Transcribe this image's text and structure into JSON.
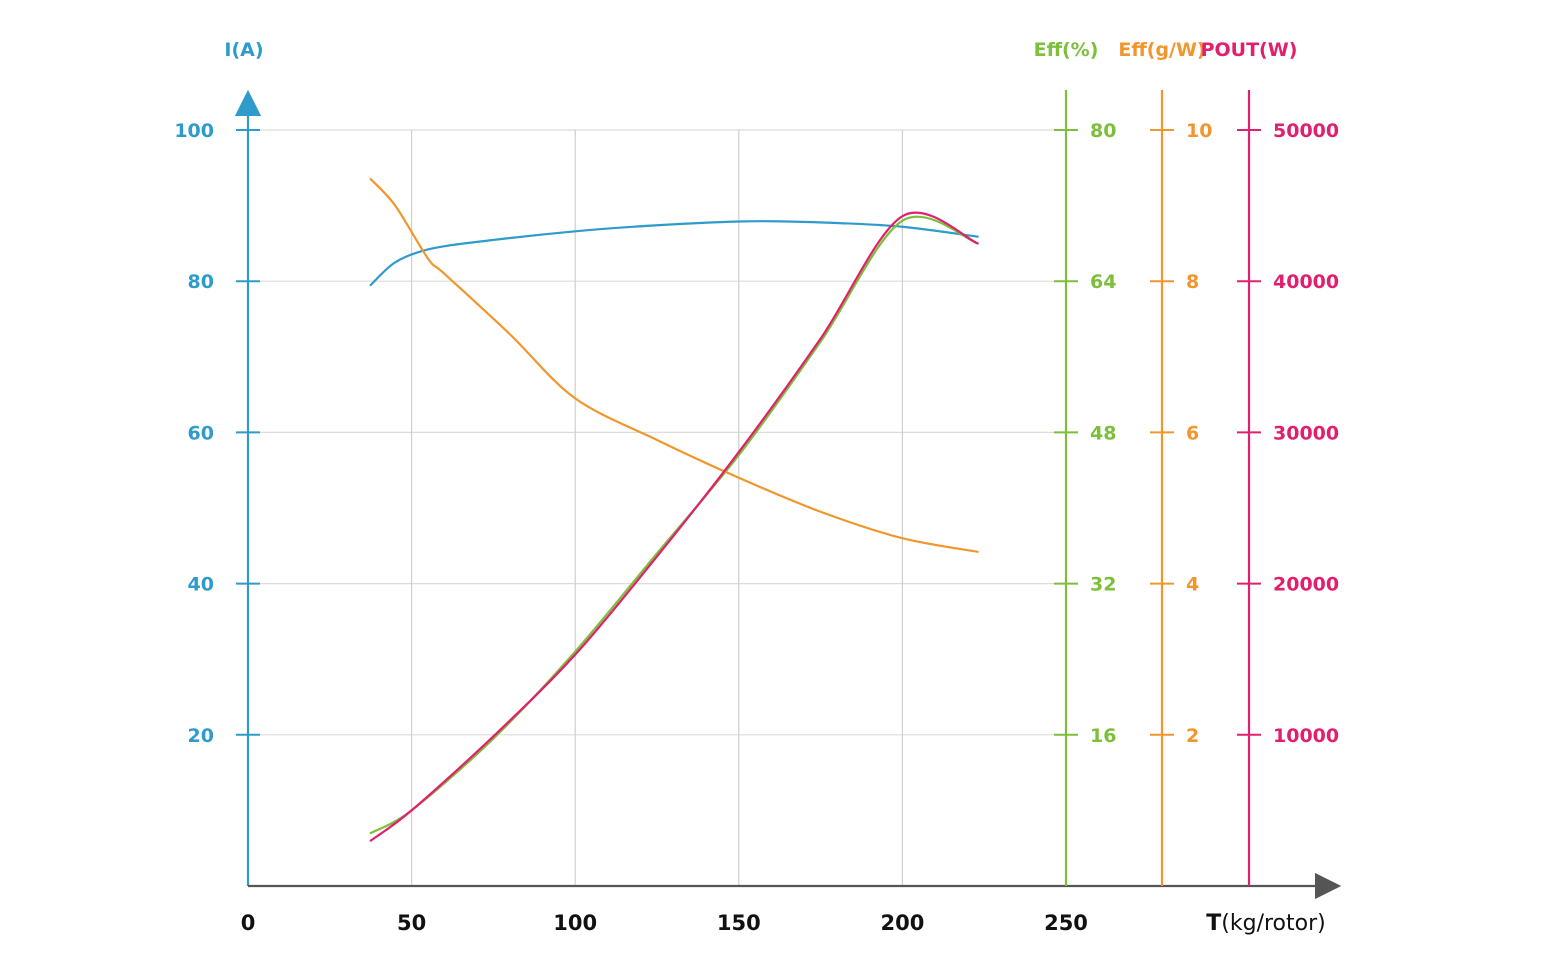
{
  "chart_data": {
    "type": "line",
    "x_axis": {
      "label_bold": "T",
      "label_rest": "(kg/rotor)",
      "ticks": [
        "0",
        "50",
        "100",
        "150",
        "200",
        "250"
      ],
      "range": [
        0,
        250
      ]
    },
    "y_axes": [
      {
        "id": "current",
        "title": "I(A)",
        "color": "#2e9bcc",
        "ticks": [
          "20",
          "40",
          "60",
          "80",
          "100"
        ],
        "tick_values": [
          20,
          40,
          60,
          80,
          100
        ],
        "range": [
          0,
          100
        ]
      },
      {
        "id": "eff_pct",
        "title": "Eff(%)",
        "color": "#7cbf3a",
        "ticks": [
          "16",
          "32",
          "48",
          "64",
          "80"
        ],
        "tick_values": [
          16,
          32,
          48,
          64,
          80
        ],
        "range": [
          0,
          80
        ]
      },
      {
        "id": "eff_gw",
        "title": "Eff(g/W)",
        "color": "#f0962d",
        "ticks": [
          "2",
          "4",
          "6",
          "8",
          "10"
        ],
        "tick_values": [
          2,
          4,
          6,
          8,
          10
        ],
        "range": [
          0,
          10
        ]
      },
      {
        "id": "pout",
        "title": "POUT(W)",
        "color": "#e0206e",
        "ticks": [
          "10000",
          "20000",
          "30000",
          "40000",
          "50000"
        ],
        "tick_values": [
          10000,
          20000,
          30000,
          40000,
          50000
        ],
        "range": [
          0,
          50000
        ]
      }
    ],
    "grid": true,
    "series": [
      {
        "axis": "current",
        "color": "#2e9bcc",
        "x": [
          37.5,
          45,
          55,
          70,
          100,
          125,
          150,
          165,
          180,
          200,
          223
        ],
        "y": [
          79.5,
          82.5,
          84.2,
          85.2,
          86.6,
          87.4,
          87.9,
          87.9,
          87.7,
          87.2,
          85.9
        ]
      },
      {
        "axis": "eff_pct",
        "color": "#7cbf3a",
        "x": [
          37.5,
          50,
          75,
          100,
          125,
          150,
          175,
          200,
          223
        ],
        "y": [
          5.6,
          8.0,
          15.6,
          24.8,
          35.2,
          45.6,
          57.6,
          70.4,
          68.0
        ]
      },
      {
        "axis": "eff_gw",
        "color": "#f0962d",
        "x": [
          37.5,
          45,
          55,
          60,
          80,
          100,
          125,
          150,
          175,
          200,
          223
        ],
        "y": [
          9.35,
          9.0,
          8.3,
          8.1,
          7.3,
          6.45,
          5.9,
          5.4,
          4.95,
          4.6,
          4.42
        ]
      },
      {
        "axis": "pout",
        "color": "#e0206e",
        "x": [
          37.5,
          50,
          75,
          100,
          125,
          150,
          175,
          200,
          223
        ],
        "y": [
          3000,
          5000,
          9900,
          15300,
          21800,
          28700,
          36200,
          44300,
          42500
        ]
      }
    ]
  }
}
